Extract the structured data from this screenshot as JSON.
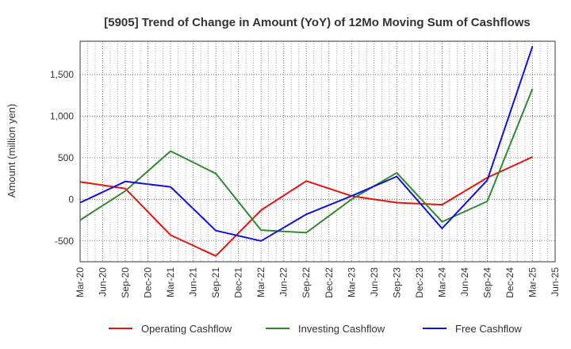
{
  "chart_data": {
    "type": "line",
    "title": "[5905]  Trend of Change in Amount (YoY) of 12Mo Moving Sum of Cashflows",
    "xlabel": "",
    "ylabel": "Amount (million yen)",
    "ylim": [
      -750,
      1900
    ],
    "yticks": [
      1500,
      1000,
      500,
      0,
      -500
    ],
    "ytick_labels": [
      "1,500",
      "1,000",
      "500",
      "0",
      "-500"
    ],
    "xticks": [
      "Mar-20",
      "Jun-20",
      "Sep-20",
      "Dec-20",
      "Mar-21",
      "Jun-21",
      "Sep-21",
      "Dec-21",
      "Mar-22",
      "Jun-22",
      "Sep-22",
      "Dec-22",
      "Mar-23",
      "Jun-23",
      "Sep-23",
      "Dec-23",
      "Mar-24",
      "Jun-24",
      "Sep-24",
      "Dec-24",
      "Mar-25",
      "Jun-25"
    ],
    "grid": true,
    "legend_position": "bottom",
    "series": [
      {
        "name": "Operating Cashflow",
        "color": "#e8130b",
        "x": [
          "Mar-20",
          "Sep-20",
          "Mar-21",
          "Sep-21",
          "Mar-22",
          "Sep-22",
          "Mar-23",
          "Sep-23",
          "Mar-24",
          "Sep-24",
          "Mar-25"
        ],
        "values": [
          210,
          130,
          -430,
          -680,
          -130,
          220,
          40,
          -40,
          -65,
          260,
          510
        ]
      },
      {
        "name": "Investing Cashflow",
        "color": "#2f8a2f",
        "x": [
          "Mar-20",
          "Sep-20",
          "Mar-21",
          "Sep-21",
          "Mar-22",
          "Sep-22",
          "Mar-23",
          "Sep-23",
          "Mar-24",
          "Sep-24",
          "Mar-25"
        ],
        "values": [
          -250,
          100,
          580,
          310,
          -370,
          -400,
          0,
          320,
          -270,
          -25,
          1330
        ]
      },
      {
        "name": "Free Cashflow",
        "color": "#1010e0",
        "x": [
          "Mar-20",
          "Sep-20",
          "Mar-21",
          "Sep-21",
          "Mar-22",
          "Sep-22",
          "Mar-23",
          "Sep-23",
          "Mar-24",
          "Sep-24",
          "Mar-25"
        ],
        "values": [
          -40,
          215,
          150,
          -375,
          -500,
          -180,
          40,
          275,
          -350,
          230,
          1840
        ]
      }
    ]
  }
}
